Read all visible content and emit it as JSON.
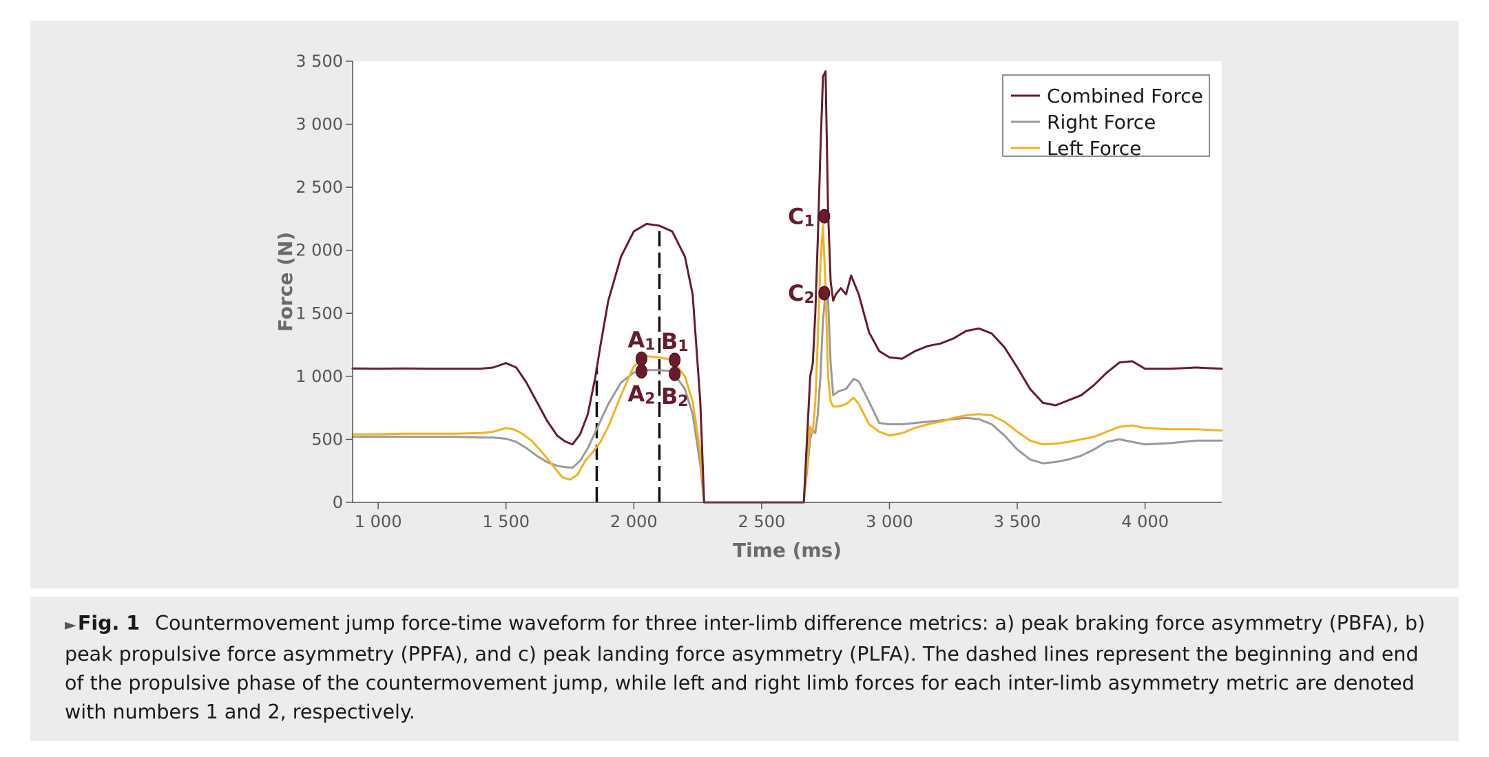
{
  "chart_data": {
    "type": "line",
    "title": "",
    "xlabel": "Time (ms)",
    "ylabel": "Force (N)",
    "xlim": [
      900,
      4300
    ],
    "ylim": [
      0,
      3500
    ],
    "x_ticks": [
      1000,
      1500,
      2000,
      2500,
      3000,
      3500,
      4000
    ],
    "x_tick_labels": [
      "1 000",
      "1 500",
      "2 000",
      "2 500",
      "3 000",
      "3 500",
      "4 000"
    ],
    "y_ticks": [
      0,
      500,
      1000,
      1500,
      2000,
      2500,
      3000,
      3500
    ],
    "y_tick_labels": [
      "0",
      "500",
      "1 000",
      "1 500",
      "2 000",
      "2 500",
      "3 000",
      "3 500"
    ],
    "grid": false,
    "legend_position": "top-right",
    "colors": {
      "combined": "#6a1b2b",
      "right": "#9a9a9a",
      "left": "#f5b21b",
      "marker": "#6a1b2b"
    },
    "series": [
      {
        "name": "Combined Force",
        "x": [
          900,
          1000,
          1100,
          1200,
          1300,
          1400,
          1450,
          1500,
          1540,
          1580,
          1620,
          1660,
          1700,
          1730,
          1760,
          1790,
          1820,
          1850,
          1870,
          1900,
          1950,
          2000,
          2050,
          2100,
          2150,
          2200,
          2230,
          2260,
          2275,
          2300,
          2400,
          2500,
          2600,
          2665,
          2690,
          2700,
          2710,
          2720,
          2730,
          2740,
          2750,
          2760,
          2770,
          2780,
          2790,
          2810,
          2830,
          2850,
          2880,
          2920,
          2960,
          3000,
          3050,
          3100,
          3150,
          3200,
          3250,
          3300,
          3350,
          3400,
          3450,
          3500,
          3550,
          3600,
          3650,
          3700,
          3750,
          3800,
          3850,
          3900,
          3950,
          4000,
          4100,
          4200,
          4300
        ],
        "y": [
          1062,
          1060,
          1062,
          1060,
          1060,
          1060,
          1070,
          1105,
          1070,
          950,
          800,
          650,
          530,
          485,
          460,
          540,
          700,
          1000,
          1250,
          1600,
          1950,
          2150,
          2210,
          2195,
          2150,
          1950,
          1650,
          800,
          0,
          0,
          0,
          0,
          0,
          0,
          1000,
          1100,
          1500,
          2100,
          2800,
          3380,
          3420,
          2300,
          1750,
          1600,
          1650,
          1700,
          1650,
          1800,
          1650,
          1350,
          1200,
          1150,
          1140,
          1200,
          1240,
          1260,
          1300,
          1360,
          1380,
          1340,
          1230,
          1070,
          900,
          790,
          770,
          810,
          850,
          930,
          1030,
          1110,
          1120,
          1060,
          1060,
          1070,
          1060
        ]
      },
      {
        "name": "Right Force",
        "x": [
          900,
          1000,
          1100,
          1200,
          1300,
          1400,
          1450,
          1500,
          1540,
          1580,
          1620,
          1660,
          1700,
          1730,
          1760,
          1790,
          1820,
          1850,
          1900,
          1950,
          2000,
          2050,
          2100,
          2150,
          2200,
          2230,
          2260,
          2275,
          2300,
          2400,
          2500,
          2600,
          2665,
          2690,
          2700,
          2710,
          2720,
          2730,
          2740,
          2750,
          2760,
          2770,
          2780,
          2800,
          2830,
          2860,
          2880,
          2920,
          2960,
          3000,
          3050,
          3100,
          3150,
          3200,
          3250,
          3300,
          3350,
          3400,
          3450,
          3500,
          3550,
          3600,
          3650,
          3700,
          3750,
          3800,
          3850,
          3900,
          3950,
          4000,
          4100,
          4200,
          4300
        ],
        "y": [
          520,
          520,
          520,
          520,
          520,
          515,
          515,
          505,
          480,
          430,
          370,
          320,
          290,
          280,
          275,
          330,
          430,
          560,
          780,
          950,
          1030,
          1050,
          1050,
          1040,
          900,
          700,
          300,
          0,
          0,
          0,
          0,
          0,
          0,
          500,
          580,
          550,
          700,
          1000,
          1450,
          1660,
          1600,
          1100,
          850,
          880,
          900,
          980,
          960,
          800,
          630,
          620,
          620,
          630,
          640,
          650,
          660,
          670,
          660,
          620,
          530,
          420,
          340,
          310,
          320,
          340,
          370,
          420,
          480,
          500,
          480,
          460,
          470,
          490,
          490
        ]
      },
      {
        "name": "Left Force",
        "x": [
          900,
          1000,
          1100,
          1200,
          1300,
          1400,
          1450,
          1500,
          1530,
          1560,
          1600,
          1640,
          1680,
          1720,
          1750,
          1780,
          1810,
          1840,
          1870,
          1900,
          1950,
          2000,
          2050,
          2100,
          2150,
          2200,
          2230,
          2260,
          2275,
          2300,
          2400,
          2500,
          2600,
          2665,
          2690,
          2700,
          2710,
          2720,
          2730,
          2740,
          2750,
          2760,
          2770,
          2780,
          2800,
          2830,
          2860,
          2880,
          2920,
          2960,
          3000,
          3050,
          3100,
          3150,
          3200,
          3250,
          3300,
          3350,
          3400,
          3450,
          3500,
          3550,
          3600,
          3650,
          3700,
          3750,
          3800,
          3850,
          3900,
          3950,
          4000,
          4100,
          4200,
          4300
        ],
        "y": [
          540,
          540,
          545,
          545,
          545,
          550,
          560,
          590,
          580,
          550,
          490,
          400,
          300,
          200,
          180,
          220,
          330,
          400,
          480,
          600,
          850,
          1080,
          1160,
          1150,
          1130,
          1000,
          800,
          400,
          0,
          0,
          0,
          0,
          0,
          0,
          600,
          550,
          800,
          1300,
          1900,
          2200,
          1700,
          1000,
          800,
          760,
          760,
          780,
          830,
          780,
          620,
          560,
          530,
          550,
          590,
          620,
          640,
          670,
          690,
          700,
          690,
          640,
          560,
          490,
          460,
          465,
          480,
          500,
          520,
          560,
          600,
          610,
          590,
          580,
          580,
          570
        ]
      }
    ],
    "vlines": [
      {
        "x": 1855,
        "y0": 0,
        "y1": 1070,
        "label": ""
      },
      {
        "x": 2100,
        "y0": 0,
        "y1": 2200,
        "label": ""
      }
    ],
    "markers": [
      {
        "x": 2030,
        "y": 1140,
        "letter": "A",
        "sub": "1",
        "label_side": "above"
      },
      {
        "x": 2030,
        "y": 1040,
        "letter": "A",
        "sub": "2",
        "label_side": "below"
      },
      {
        "x": 2160,
        "y": 1130,
        "letter": "B",
        "sub": "1",
        "label_side": "above"
      },
      {
        "x": 2160,
        "y": 1020,
        "letter": "B",
        "sub": "2",
        "label_side": "below"
      },
      {
        "x": 2745,
        "y": 2270,
        "letter": "C",
        "sub": "1",
        "label_side": "left"
      },
      {
        "x": 2745,
        "y": 1660,
        "letter": "C",
        "sub": "2",
        "label_side": "left"
      }
    ]
  },
  "caption": {
    "marker": "►",
    "label": "Fig. 1",
    "text": "Countermovement jump force-time waveform for three inter-limb difference metrics: a) peak braking force asymmetry (PBFA), b) peak propulsive force asymmetry (PPFA), and c) peak landing force asymmetry (PLFA). The dashed lines represent the beginning and end of the propulsive phase of the countermovement jump, while left and right limb forces for each inter-limb asymmetry metric are denoted with numbers 1 and 2, respectively."
  }
}
